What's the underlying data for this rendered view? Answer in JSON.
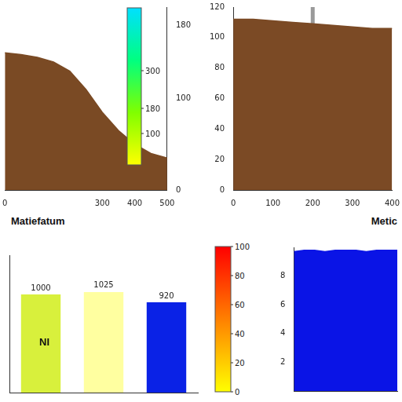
{
  "chart_data": [
    {
      "type": "area",
      "x_label": "Matiefatum",
      "x": [
        0,
        50,
        100,
        150,
        200,
        250,
        300,
        350,
        400,
        450,
        500
      ],
      "values": [
        150,
        148,
        145,
        140,
        130,
        110,
        85,
        65,
        50,
        40,
        35
      ],
      "color": "#7a4a24",
      "xlim": [
        0,
        500
      ],
      "xticks": [
        0,
        300,
        400,
        500
      ],
      "ylim": [
        0,
        200
      ],
      "yticks": [
        0,
        100,
        180
      ],
      "grid": false,
      "colorbar": {
        "range": [
          0,
          500
        ],
        "ticks": [
          100,
          180,
          300
        ],
        "colors": [
          "#ffff00",
          "#80ff00",
          "#00ff80",
          "#00e0ff"
        ]
      }
    },
    {
      "type": "area",
      "x_label": "Metic",
      "x": [
        0,
        50,
        100,
        150,
        200,
        250,
        300,
        350,
        400
      ],
      "values": [
        112,
        112,
        111,
        110,
        109,
        108,
        107,
        106,
        106
      ],
      "color": "#7b4a25",
      "xlim": [
        0,
        400
      ],
      "xticks": [
        0,
        100,
        200,
        300,
        400
      ],
      "ylim": [
        0,
        120
      ],
      "yticks": [
        0,
        20,
        40,
        60,
        80,
        100,
        120
      ],
      "grid": false,
      "series": [
        {
          "type": "line",
          "color": "#9a9a9a",
          "x": [
            200,
            200
          ],
          "values": [
            0,
            120
          ]
        }
      ]
    },
    {
      "type": "bar",
      "annotation": "NI",
      "categories": [
        null,
        null,
        null
      ],
      "values": [
        1000,
        1025,
        920
      ],
      "colors": [
        "#d8f03c",
        "#ffffa0",
        "#0a22e6"
      ],
      "ylim": [
        0,
        1400
      ],
      "tick_labels": false,
      "data_labels": true,
      "grid": false
    },
    {
      "type": "area",
      "x": [
        0,
        1,
        2,
        3,
        4,
        5,
        6,
        7,
        8,
        9,
        10
      ],
      "values": [
        9.7,
        9.8,
        9.8,
        9.7,
        9.8,
        9.8,
        9.8,
        9.7,
        9.8,
        9.8,
        9.8
      ],
      "color": "#0a14e6",
      "xlim": [
        0,
        10
      ],
      "ylim": [
        0,
        10
      ],
      "yticks": [
        2,
        4,
        6,
        8
      ],
      "tick_labels": "y",
      "grid": false,
      "colorbar": {
        "range": [
          0,
          100
        ],
        "ticks": [
          0,
          20,
          40,
          60,
          80,
          100
        ],
        "colors": [
          "#ffff00",
          "#ff8000",
          "#ff0000"
        ]
      }
    }
  ]
}
